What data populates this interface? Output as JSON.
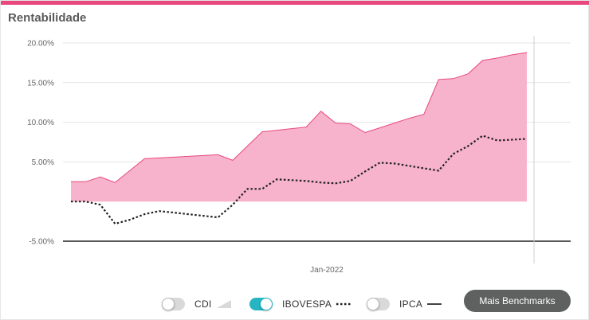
{
  "widget": {
    "title": "Rentabilidade",
    "accent_color": "#e8487e",
    "more_benchmarks_label": "Mais Benchmarks"
  },
  "legend": [
    {
      "label": "CDI",
      "enabled": false,
      "swatch": "area-icon"
    },
    {
      "label": "IBOVESPA",
      "enabled": true,
      "swatch": "dotted-line-icon"
    },
    {
      "label": "IPCA",
      "enabled": false,
      "swatch": "solid-line-icon"
    }
  ],
  "chart_data": {
    "type": "area",
    "ylim": [
      -5,
      20
    ],
    "y_ticks": [
      20,
      15,
      10,
      5,
      -5
    ],
    "y_tick_labels": [
      "20.00%",
      "15.00%",
      "10.00%",
      "5.00%",
      "-5.00%"
    ],
    "x_tick_labels": [
      "Jan-2022"
    ],
    "grid": true,
    "series": [
      {
        "style": "area",
        "color": "#f7b3cb",
        "line_color": "#e8487e",
        "values": [
          2.5,
          2.5,
          3.1,
          2.4,
          3.9,
          5.4,
          5.5,
          5.6,
          5.7,
          5.8,
          5.9,
          5.2,
          7.0,
          8.8,
          9.0,
          9.2,
          9.4,
          11.4,
          9.9,
          9.8,
          8.7,
          9.3,
          9.9,
          10.5,
          11.0,
          15.4,
          15.5,
          16.1,
          17.8,
          18.1,
          18.5,
          18.8
        ]
      },
      {
        "name": "IBOVESPA",
        "style": "dotted",
        "color": "#222222",
        "values": [
          0.0,
          0.0,
          -0.4,
          -2.8,
          -2.3,
          -1.6,
          -1.2,
          -1.4,
          -1.6,
          -1.8,
          -2.0,
          -0.4,
          1.6,
          1.6,
          2.8,
          2.7,
          2.6,
          2.4,
          2.3,
          2.6,
          3.8,
          4.9,
          4.8,
          4.5,
          4.2,
          3.9,
          6.0,
          7.0,
          8.3,
          7.7,
          7.8,
          7.9
        ]
      }
    ]
  }
}
